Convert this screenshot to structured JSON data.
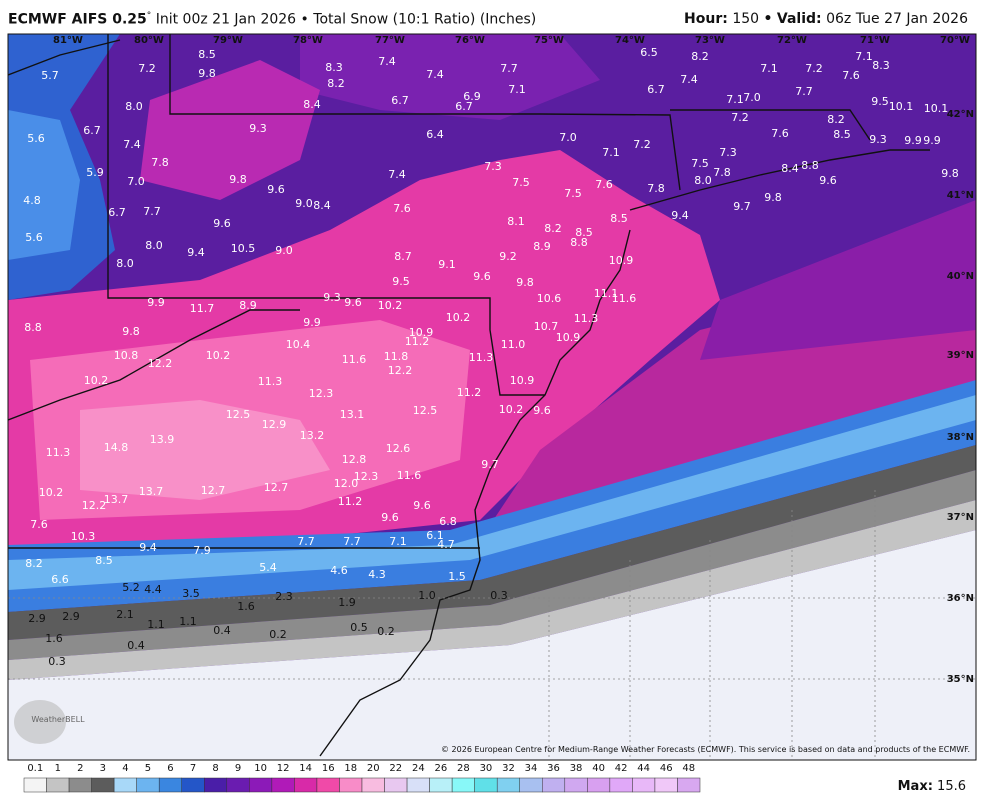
{
  "header": {
    "title": "ECMWF AIFS 0.25",
    "degree": "°",
    "subtitle": "Init 00z 21 Jan 2026",
    "separator": "•",
    "product": "Total Snow (10:1 Ratio) (Inches)",
    "hour_label": "Hour:",
    "hour": "150",
    "valid_label": "Valid:",
    "valid": "06z Tue 27 Jan 2026"
  },
  "map": {
    "latitude_labels": [
      "42°N",
      "41°N",
      "40°N",
      "39°N",
      "38°N",
      "37°N",
      "36°N",
      "35°N"
    ],
    "longitude_labels": [
      "81°W",
      "80°W",
      "79°W",
      "78°W",
      "77°W",
      "76°W",
      "75°W",
      "74°W",
      "73°W",
      "72°W",
      "71°W",
      "70°W"
    ],
    "snow_labels": [
      "5.7",
      "7.2",
      "8.5",
      "9.8",
      "8.3",
      "8.2",
      "7.4",
      "7.4",
      "7.7",
      "7.1",
      "6.5",
      "8.2",
      "7.1",
      "7.2",
      "7.1",
      "8.3",
      "7.6",
      "7.4",
      "6.7",
      "7.7",
      "7.1",
      "7.0",
      "9.5",
      "10.1",
      "10.1",
      "8.0",
      "8.4",
      "6.7",
      "6.7",
      "6.9",
      "6.7",
      "5.6",
      "7.4",
      "9.3",
      "6.4",
      "7.0",
      "7.2",
      "8.2",
      "8.5",
      "9.3",
      "9.9",
      "9.9",
      "7.6",
      "7.1",
      "7.2",
      "7.3",
      "5.9",
      "7.8",
      "7.0",
      "9.8",
      "9.6",
      "7.4",
      "7.3",
      "7.5",
      "7.5",
      "8.0",
      "7.8",
      "8.4",
      "8.8",
      "9.6",
      "9.8",
      "4.8",
      "6.7",
      "7.7",
      "9.0",
      "8.4",
      "7.6",
      "7.5",
      "7.6",
      "7.8",
      "9.7",
      "9.8",
      "9.4",
      "8.5",
      "8.1",
      "9.6",
      "5.6",
      "8.0",
      "9.4",
      "10.5",
      "9.0",
      "8.2",
      "8.5",
      "8.9",
      "8.8",
      "8.0",
      "8.7",
      "9.1",
      "9.2",
      "10.9",
      "9.6",
      "9.5",
      "9.8",
      "9.9",
      "11.7",
      "8.9",
      "9.3",
      "9.6",
      "10.2",
      "10.6",
      "11.1",
      "11.6",
      "10.2",
      "9.9",
      "11.3",
      "10.7",
      "8.8",
      "9.8",
      "10.9",
      "11.2",
      "10.4",
      "11.0",
      "10.9",
      "10.8",
      "12.2",
      "10.2",
      "11.6",
      "11.8",
      "12.2",
      "11.3",
      "10.2",
      "11.3",
      "12.3",
      "10.9",
      "11.2",
      "12.5",
      "13.1",
      "12.5",
      "10.2",
      "9.6",
      "12.9",
      "13.2",
      "14.8",
      "13.9",
      "12.6",
      "11.3",
      "12.8",
      "12.3",
      "12.0",
      "11.6",
      "9.7",
      "10.2",
      "13.7",
      "13.7",
      "12.7",
      "12.7",
      "12.2",
      "11.2",
      "9.6",
      "9.6",
      "6.8",
      "7.6",
      "10.3",
      "6.1",
      "4.7",
      "9.4",
      "7.9",
      "7.7",
      "7.7",
      "7.1",
      "8.5",
      "8.2",
      "5.4",
      "4.6",
      "4.3",
      "1.5",
      "6.6",
      "5.2",
      "4.4",
      "3.5",
      "2.3",
      "1.9",
      "1.0",
      "0.3",
      "1.6",
      "2.1",
      "2.9",
      "2.9",
      "1.1",
      "1.1",
      "0.4",
      "0.2",
      "0.5",
      "0.2",
      "1.6",
      "0.4",
      "0.3"
    ],
    "logo": "WeatherBELL",
    "credit": "© 2026 European Centre for Medium-Range Weather Forecasts (ECMWF). This service is based on data and products of the ECMWF."
  },
  "legend": {
    "labels": [
      "0.1",
      "1",
      "2",
      "3",
      "4",
      "5",
      "6",
      "7",
      "8",
      "9",
      "10",
      "12",
      "14",
      "16",
      "18",
      "20",
      "22",
      "24",
      "26",
      "28",
      "30",
      "32",
      "34",
      "36",
      "38",
      "40",
      "42",
      "44",
      "46",
      "48"
    ],
    "colors": [
      "#f4f4f4",
      "#c4c4c4",
      "#8c8c8c",
      "#5c5c5c",
      "#a8d8f8",
      "#6cb4f0",
      "#3a86e0",
      "#2456c8",
      "#4a1ea8",
      "#6a1cb0",
      "#8c1ab8",
      "#b01ab8",
      "#d82aa8",
      "#f04aa8",
      "#f88cc8",
      "#f8bce0",
      "#e8c8f0",
      "#d8e0f8",
      "#b8f0f8",
      "#88f8f8",
      "#60e0e8",
      "#80d0f0",
      "#a8c0f0",
      "#c0b0f0",
      "#d0a8f0",
      "#d8a0f0",
      "#e0a8f8",
      "#e8b8f8",
      "#f0c8f8",
      "#d8a8f0"
    ],
    "max_label": "Max:",
    "max": "15.6"
  }
}
